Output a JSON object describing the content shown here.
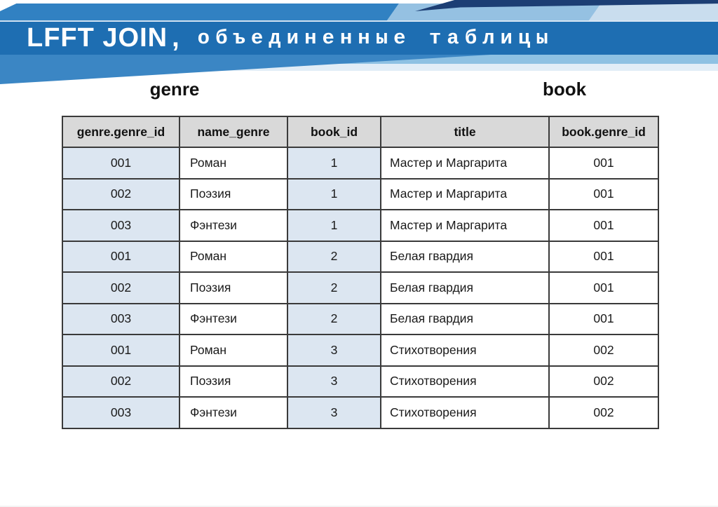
{
  "header": {
    "title_main": "LFFT JOIN",
    "title_comma": ",",
    "title_sub": "объединенные таблицы"
  },
  "labels": {
    "left_table": "genre",
    "right_table": "book"
  },
  "table": {
    "columns": [
      "genre.genre_id",
      "name_genre",
      "book_id",
      "title",
      "book.genre_id"
    ],
    "rows": [
      [
        "001",
        "Роман",
        "1",
        "Мастер и Маргарита",
        "001"
      ],
      [
        "002",
        "Поэзия",
        "1",
        "Мастер и Маргарита",
        "001"
      ],
      [
        "003",
        "Фэнтези",
        "1",
        "Мастер и Маргарита",
        "001"
      ],
      [
        "001",
        "Роман",
        "2",
        "Белая гвардия",
        "001"
      ],
      [
        "002",
        "Поэзия",
        "2",
        "Белая гвардия",
        "001"
      ],
      [
        "003",
        "Фэнтези",
        "2",
        "Белая гвардия",
        "001"
      ],
      [
        "001",
        "Роман",
        "3",
        "Стихотворения",
        "002"
      ],
      [
        "002",
        "Поэзия",
        "3",
        "Стихотворения",
        "002"
      ],
      [
        "003",
        "Фэнтези",
        "3",
        "Стихотворения",
        "002"
      ]
    ]
  },
  "colors": {
    "band": "#1e6eb2",
    "top_strip": "#3181c2",
    "seg_light": "#95c1e2",
    "seg_lighter": "#c9ddee",
    "navy": "#1c3e74",
    "strip_light": "#8ec1e3",
    "strip_lighter": "#e1edf7",
    "wedge": "#3b86c4",
    "cell_blue": "#dce6f1",
    "header_gray": "#d9d9d9",
    "border": "#3a3a3a",
    "label_color": "#111111"
  }
}
